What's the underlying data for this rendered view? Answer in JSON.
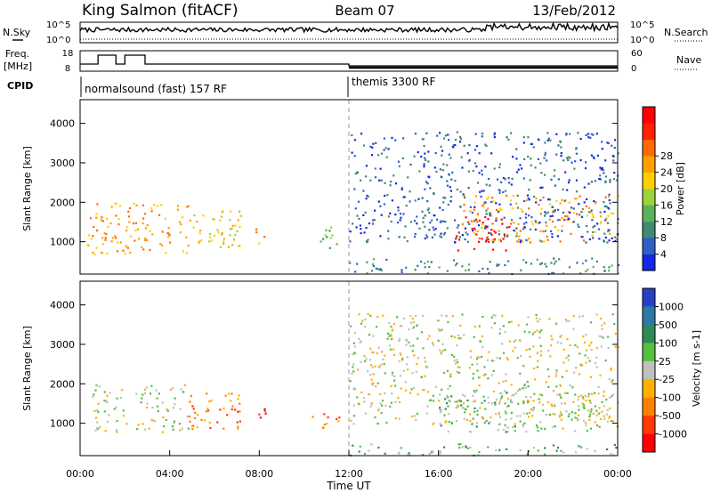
{
  "header": {
    "station": "King Salmon (fitACF)",
    "beam": "Beam 07",
    "date": "13/Feb/2012"
  },
  "status_panels": {
    "nsky": {
      "label": "N.Sky",
      "yticks": [
        "10^5",
        "10^0"
      ]
    },
    "nsearch": {
      "label": "N.Search",
      "yticks": [
        "10^5",
        "10^0"
      ]
    },
    "freq": {
      "label_line1": "Freq.",
      "label_line2": "[MHz]",
      "yticks": [
        "18",
        "8"
      ]
    },
    "nave": {
      "label": "Nave",
      "yticks": [
        "60",
        "0"
      ]
    },
    "cpid": {
      "label": "CPID",
      "segments": [
        {
          "name": "normalsound (fast) 157 RF",
          "start_hour": 0,
          "end_hour": 12
        },
        {
          "name": "themis 3300 RF",
          "start_hour": 12,
          "end_hour": 24
        }
      ]
    }
  },
  "time_axis": {
    "label": "Time UT",
    "ticks": [
      "00:00",
      "04:00",
      "08:00",
      "12:00",
      "16:00",
      "20:00",
      "00:00"
    ]
  },
  "chart_data": [
    {
      "type": "heatmap",
      "panel": "power",
      "ylabel": "Slant Range [km]",
      "yticks": [
        "1000",
        "2000",
        "3000",
        "4000"
      ],
      "xlim_hours": [
        0,
        24
      ],
      "ylim_km": [
        180,
        4600
      ],
      "colorbar": {
        "label": "Power [dB]",
        "ticks": [
          "4",
          "8",
          "12",
          "16",
          "20",
          "24",
          "28"
        ],
        "colors": [
          "#1428e6",
          "#2f5ec8",
          "#3f8a70",
          "#5ab35a",
          "#9ad43a",
          "#ffd000",
          "#ffa000",
          "#ff6a00",
          "#ff2000",
          "#ff0000"
        ]
      },
      "regions": [
        {
          "t0": 0.3,
          "t1": 4.8,
          "r0": 700,
          "r1": 2000,
          "level": 6
        },
        {
          "t0": 4.5,
          "t1": 7.2,
          "r0": 850,
          "r1": 1800,
          "level": 5
        },
        {
          "t0": 7.8,
          "t1": 8.3,
          "r0": 900,
          "r1": 1500,
          "level": 6
        },
        {
          "t0": 10.3,
          "t1": 11.6,
          "r0": 850,
          "r1": 1400,
          "level": 3
        },
        {
          "t0": 16.6,
          "t1": 19.2,
          "r0": 800,
          "r1": 1700,
          "level": 9
        },
        {
          "t0": 17.0,
          "t1": 24.0,
          "r0": 1000,
          "r1": 2200,
          "level": 6
        },
        {
          "t0": 12.0,
          "t1": 24.0,
          "r0": 200,
          "r1": 600,
          "level": 2
        },
        {
          "t0": 12.0,
          "t1": 24.0,
          "r0": 1000,
          "r1": 3800,
          "level": 1
        }
      ]
    },
    {
      "type": "heatmap",
      "panel": "velocity",
      "ylabel": "Slant Range [km]",
      "yticks": [
        "1000",
        "2000",
        "3000",
        "4000"
      ],
      "xlim_hours": [
        0,
        24
      ],
      "ylim_km": [
        180,
        4600
      ],
      "colorbar": {
        "label": "Velocity [m s-1]",
        "ticks": [
          "1000",
          "500",
          "100",
          "25",
          "-25",
          "-100",
          "-500",
          "-1000"
        ],
        "colors": [
          "#2840c8",
          "#2e78a8",
          "#2f8a5a",
          "#55c040",
          "#c0c0bc",
          "#ffb000",
          "#ff8000",
          "#ff3a00",
          "#ff0000"
        ]
      },
      "regions": [
        {
          "t0": 0.5,
          "t1": 4.8,
          "r0": 800,
          "r1": 2000,
          "level": 4
        },
        {
          "t0": 4.8,
          "t1": 7.5,
          "r0": 850,
          "r1": 1800,
          "level": 6
        },
        {
          "t0": 7.9,
          "t1": 8.3,
          "r0": 950,
          "r1": 1500,
          "level": 8
        },
        {
          "t0": 10.3,
          "t1": 11.6,
          "r0": 900,
          "r1": 1300,
          "level": 6
        },
        {
          "t0": 16.0,
          "t1": 19.4,
          "r0": 800,
          "r1": 1800,
          "level": 3
        },
        {
          "t0": 18.5,
          "t1": 24.0,
          "r0": 800,
          "r1": 1800,
          "level": 4
        },
        {
          "t0": 12.0,
          "t1": 24.0,
          "r0": 200,
          "r1": 500,
          "level": 3
        },
        {
          "t0": 12.0,
          "t1": 24.0,
          "r0": 1000,
          "r1": 3800,
          "level": 4
        }
      ]
    }
  ]
}
